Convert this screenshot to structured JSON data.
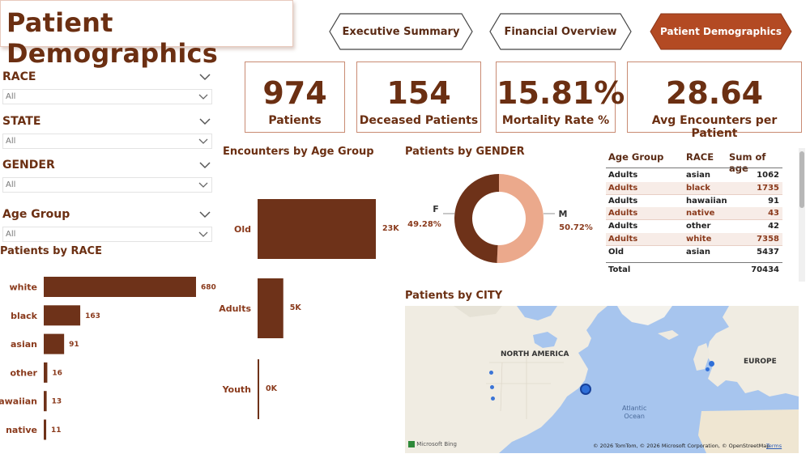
{
  "page": {
    "title": "Patient Demographics"
  },
  "nav": {
    "buttons": [
      {
        "label": "Executive Summary",
        "active": false
      },
      {
        "label": "Financial Overview",
        "active": false
      },
      {
        "label": "Patient Demographics",
        "active": true
      }
    ]
  },
  "kpis": [
    {
      "value": "974",
      "label": "Patients"
    },
    {
      "value": "154",
      "label": "Deceased Patients"
    },
    {
      "value": "15.81%",
      "label": "Mortality Rate %"
    },
    {
      "value": "28.64",
      "label": "Avg Encounters per Patient"
    }
  ],
  "slicers": [
    {
      "title": "RACE",
      "value": "All"
    },
    {
      "title": "STATE",
      "value": "All"
    },
    {
      "title": "GENDER",
      "value": "All"
    },
    {
      "title": "Age Group",
      "value": "All"
    }
  ],
  "colors": {
    "brown": "#6b3419",
    "bar": "#6e3219",
    "salmon": "#eba98c",
    "rowAlt": "#f7ece7",
    "accentText": "#8a3a1c"
  },
  "chart_data": [
    {
      "type": "bar",
      "title": "Patients by RACE",
      "orientation": "horizontal",
      "categories": [
        "white",
        "black",
        "asian",
        "other",
        "hawaiian",
        "native"
      ],
      "values": [
        680,
        163,
        91,
        16,
        13,
        11
      ],
      "value_labels": [
        "680",
        "163",
        "91",
        "16",
        "13",
        "11"
      ]
    },
    {
      "type": "bar",
      "title": "Encounters by Age Group",
      "orientation": "horizontal",
      "categories": [
        "Old",
        "Adults",
        "Youth"
      ],
      "values": [
        23000,
        5000,
        300
      ],
      "value_labels": [
        "23K",
        "5K",
        "0K"
      ]
    },
    {
      "type": "pie",
      "title": "Patients by GENDER",
      "donut": true,
      "categories": [
        "F",
        "M"
      ],
      "values": [
        49.28,
        50.72
      ],
      "value_labels": [
        "49.28%",
        "50.72%"
      ]
    },
    {
      "type": "table",
      "columns": [
        "Age Group",
        "RACE",
        "Sum of age"
      ],
      "rows": [
        [
          "Adults",
          "asian",
          "1062"
        ],
        [
          "Adults",
          "black",
          "1735"
        ],
        [
          "Adults",
          "hawaiian",
          "91"
        ],
        [
          "Adults",
          "native",
          "43"
        ],
        [
          "Adults",
          "other",
          "42"
        ],
        [
          "Adults",
          "white",
          "7358"
        ],
        [
          "Old",
          "asian",
          "5437"
        ]
      ],
      "total_label": "Total",
      "total_value": "70434"
    }
  ],
  "map": {
    "title": "Patients by CITY",
    "labels": {
      "north_america": "NORTH AMERICA",
      "europe": "EUROPE",
      "ocean": "Atlantic\nOcean"
    },
    "logo_text": "Microsoft Bing",
    "attribution": "© 2026 TomTom, © 2026 Microsoft Corporation, © OpenStreetMap",
    "terms": "Terms"
  }
}
